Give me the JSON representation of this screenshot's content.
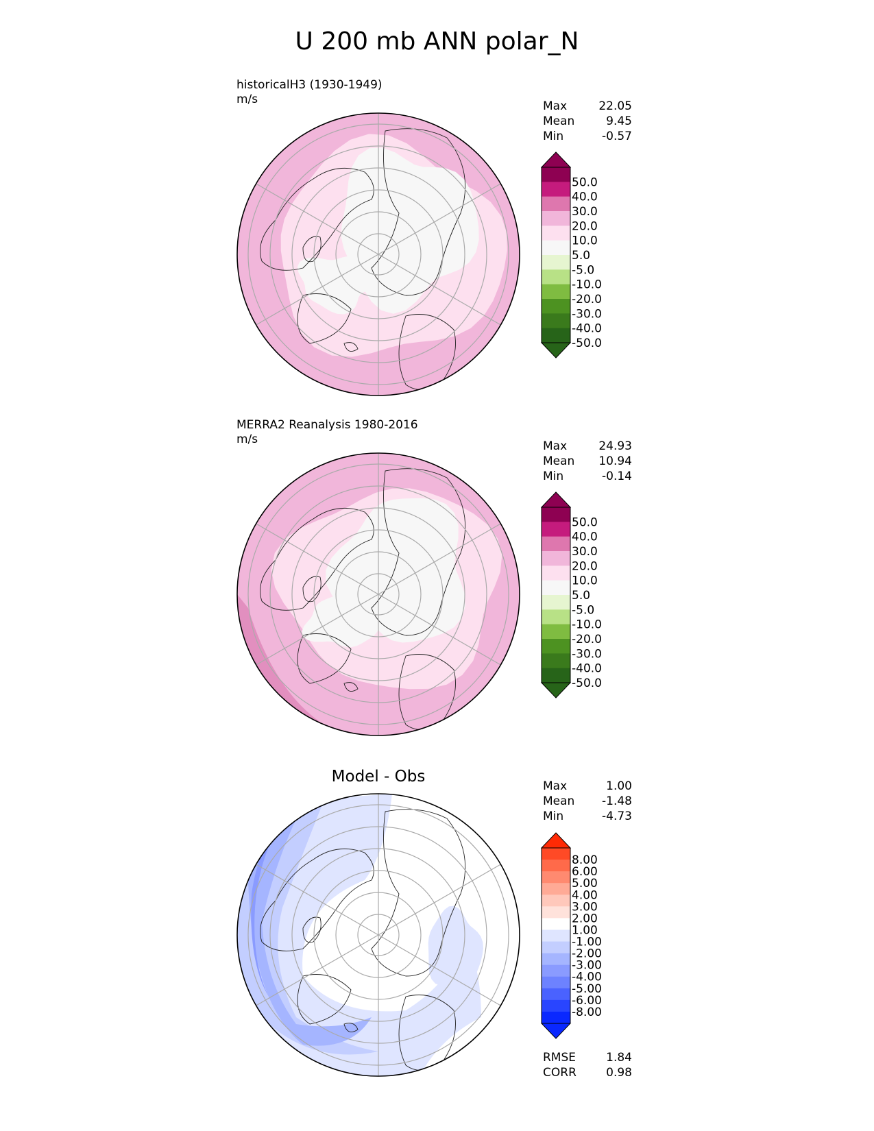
{
  "title": "U 200 mb ANN polar_N",
  "panels": [
    {
      "label_line1": "historicalH3 (1930-1949)",
      "label_line2": "m/s",
      "center_title": "",
      "stats": [
        {
          "name": "Max",
          "value": "22.05"
        },
        {
          "name": "Mean",
          "value": "9.45"
        },
        {
          "name": "Min",
          "value": "-0.57"
        }
      ],
      "colorbar_labels": [
        "50.0",
        "40.0",
        "30.0",
        "20.0",
        "10.0",
        "5.0",
        "-5.0",
        "-10.0",
        "-20.0",
        "-30.0",
        "-40.0",
        "-50.0"
      ],
      "colorbar_colors": [
        "#8e0152",
        "#c51b7d",
        "#de77ae",
        "#f1b6da",
        "#fde0ef",
        "#f7f7f7",
        "#e6f5d0",
        "#b8e186",
        "#7fbc41",
        "#4d9221",
        "#3a7a1c",
        "#276419"
      ],
      "colorbar_over": "#8e0152",
      "colorbar_under": "#276419"
    },
    {
      "label_line1": "MERRA2 Reanalysis 1980-2016",
      "label_line2": "m/s",
      "center_title": "",
      "stats": [
        {
          "name": "Max",
          "value": "24.93"
        },
        {
          "name": "Mean",
          "value": "10.94"
        },
        {
          "name": "Min",
          "value": "-0.14"
        }
      ],
      "colorbar_labels": [
        "50.0",
        "40.0",
        "30.0",
        "20.0",
        "10.0",
        "5.0",
        "-5.0",
        "-10.0",
        "-20.0",
        "-30.0",
        "-40.0",
        "-50.0"
      ],
      "colorbar_colors": [
        "#8e0152",
        "#c51b7d",
        "#de77ae",
        "#f1b6da",
        "#fde0ef",
        "#f7f7f7",
        "#e6f5d0",
        "#b8e186",
        "#7fbc41",
        "#4d9221",
        "#3a7a1c",
        "#276419"
      ],
      "colorbar_over": "#8e0152",
      "colorbar_under": "#276419"
    },
    {
      "label_line1": "",
      "label_line2": "",
      "center_title": "Model - Obs",
      "stats": [
        {
          "name": "Max",
          "value": "1.00"
        },
        {
          "name": "Mean",
          "value": "-1.48"
        },
        {
          "name": "Min",
          "value": "-4.73"
        }
      ],
      "extra_stats": [
        {
          "name": "RMSE",
          "value": "1.84"
        },
        {
          "name": "CORR",
          "value": "0.98"
        }
      ],
      "colorbar_labels": [
        "8.00",
        "6.00",
        "5.00",
        "4.00",
        "3.00",
        "2.00",
        "1.00",
        "-1.00",
        "-2.00",
        "-3.00",
        "-4.00",
        "-5.00",
        "-6.00",
        "-8.00"
      ],
      "colorbar_colors": [
        "#ff4a26",
        "#ff6a4a",
        "#ff8a70",
        "#ffaa96",
        "#ffc8bb",
        "#ffe2db",
        "#ffffff",
        "#dfe5ff",
        "#c3ceff",
        "#a5b5ff",
        "#8a9bff",
        "#6d82ff",
        "#4a62ff",
        "#2945ff",
        "#0a28ff"
      ],
      "colorbar_over": "#ff2a05",
      "colorbar_under": "#0a28ff"
    }
  ],
  "chart_data": [
    {
      "type": "heatmap",
      "title": "historicalH3 (1930-1949)",
      "units": "m/s",
      "projection": "polar_N",
      "levels": [
        -50,
        -40,
        -30,
        -20,
        -10,
        -5,
        5,
        10,
        20,
        30,
        40,
        50
      ],
      "max": 22.05,
      "mean": 9.45,
      "min": -0.57
    },
    {
      "type": "heatmap",
      "title": "MERRA2 Reanalysis 1980-2016",
      "units": "m/s",
      "projection": "polar_N",
      "levels": [
        -50,
        -40,
        -30,
        -20,
        -10,
        -5,
        5,
        10,
        20,
        30,
        40,
        50
      ],
      "max": 24.93,
      "mean": 10.94,
      "min": -0.14
    },
    {
      "type": "heatmap",
      "title": "Model - Obs",
      "projection": "polar_N",
      "levels": [
        -8,
        -6,
        -5,
        -4,
        -3,
        -2,
        -1,
        1,
        2,
        3,
        4,
        5,
        6,
        8
      ],
      "max": 1.0,
      "mean": -1.48,
      "min": -4.73,
      "rmse": 1.84,
      "corr": 0.98
    }
  ]
}
